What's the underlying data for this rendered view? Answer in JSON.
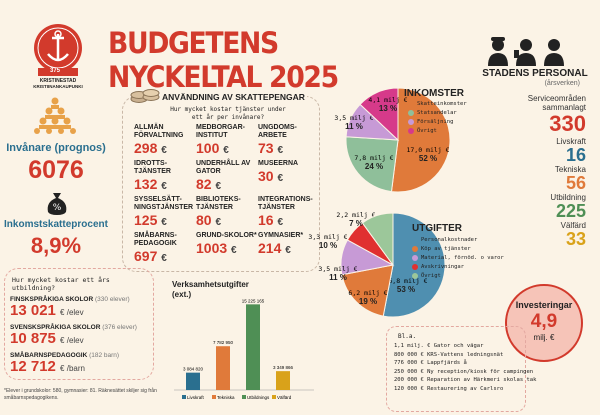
{
  "title": "BUDGETENS NYCKELTAL 2025",
  "logo": {
    "year_a": "anno",
    "year": "375",
    "year_b": "Kristinestad",
    "name1": "KRISTINESTAD",
    "name2": "KRISTIINANKAUPUNKI"
  },
  "residents": {
    "label": "Invånare (prognos)",
    "value": "6076"
  },
  "tax": {
    "label": "Inkomstskatteprocent",
    "value": "8,9%"
  },
  "services": {
    "title": "ANVÄNDNING AV SKATTEPENGAR",
    "subtitle": "Hur mycket kostar tjänster under ett år per invånare?",
    "items": [
      {
        "label": "ALLMÄN FÖRVALTNING",
        "value": "298",
        "unit": "€"
      },
      {
        "label": "MEDBORGAR-INSTITUT",
        "value": "100",
        "unit": "€"
      },
      {
        "label": "UNGDOMS-ARBETE",
        "value": "73",
        "unit": "€"
      },
      {
        "label": "IDROTTS-TJÄNSTER",
        "value": "132",
        "unit": "€"
      },
      {
        "label": "UNDERHÅLL AV GATOR",
        "value": "82",
        "unit": "€"
      },
      {
        "label": "MUSEERNA",
        "value": "30",
        "unit": "€"
      },
      {
        "label": "SYSSELSÄTT-NINGSTJÄNSTER",
        "value": "125",
        "unit": "€"
      },
      {
        "label": "BIBLIOTEKS-TJÄNSTER",
        "value": "80",
        "unit": "€"
      },
      {
        "label": "INTEGRATIONS-TJÄNSTER",
        "value": "16",
        "unit": "€"
      },
      {
        "label": "SMÅBARNS-PEDAGOGIK",
        "value": "697",
        "unit": "€"
      },
      {
        "label": "GRUND-SKOLOR*",
        "value": "1003",
        "unit": "€"
      },
      {
        "label": "GYMNASIER*",
        "value": "214",
        "unit": "€"
      }
    ]
  },
  "income": {
    "title": "INKOMSTER",
    "legend": [
      "Skatteinkomster",
      "Statsandelar",
      "Försäljning",
      "Övrigt"
    ],
    "colors": [
      "#e07a3a",
      "#8fbf9a",
      "#c79ad6",
      "#d63a8a"
    ],
    "slices": [
      {
        "amount": "17,0 milj €",
        "pct": "52 %",
        "value": 52
      },
      {
        "amount": "7,8 milj €",
        "pct": "24 %",
        "value": 24
      },
      {
        "amount": "3,5 milj €",
        "pct": "11 %",
        "value": 11
      },
      {
        "amount": "4,1 milj €",
        "pct": "13 %",
        "value": 13
      }
    ]
  },
  "expense": {
    "title": "UTGIFTER",
    "legend": [
      "Personalkostnader",
      "Köp av tjänster",
      "Material, förnöd. o varor",
      "Avskrivningar",
      "Övrigt"
    ],
    "colors": [
      "#4f8fb0",
      "#e07a3a",
      "#c79ad6",
      "#e03030",
      "#9cc79a"
    ],
    "slices": [
      {
        "amount": "16,8 milj €",
        "pct": "53 %",
        "value": 53
      },
      {
        "amount": "6,2 milj €",
        "pct": "19 %",
        "value": 19
      },
      {
        "amount": "3,5 milj €",
        "pct": "11 %",
        "value": 11
      },
      {
        "amount": "2,2 milj €",
        "pct": "7 %",
        "value": 7
      },
      {
        "amount": "3,3 milj €",
        "pct": "10 %",
        "value": 10
      }
    ]
  },
  "staff": {
    "title": "STADENS PERSONAL",
    "subtitle": "(årsverken)",
    "items": [
      {
        "label": "Serviceområden sammanlagt",
        "value": "330",
        "color": "#d23a2c"
      },
      {
        "label": "Livskraft",
        "value": "16",
        "color": "#2a6f8f"
      },
      {
        "label": "Tekniska",
        "value": "56",
        "color": "#e07a3a"
      },
      {
        "label": "Utbildning",
        "value": "225",
        "color": "#4f8f55"
      },
      {
        "label": "Välfärd",
        "value": "33",
        "color": "#d9a21a"
      }
    ]
  },
  "student_cost": {
    "q": "Hur mycket kostar ett års utbildning?",
    "items": [
      {
        "label": "FINSKSPRÅKIGA SKOLOR",
        "note": "(330 elever)",
        "value": "13 021",
        "unit": "€ /elev"
      },
      {
        "label": "SVENSKSPRÅKIGA SKOLOR",
        "note": "(376 elever)",
        "value": "10 875",
        "unit": "€ /elev"
      },
      {
        "label": "SMÅBARNSPEDAGOGIK",
        "note": "(182 barn)",
        "value": "12 712",
        "unit": "€ /barn"
      }
    ],
    "footnote": "*Elever i grundskolor: 580, gymnasier: 81. Räknesättet skiljer sig från småbarnspedagogikens."
  },
  "chart_data": {
    "type": "bar",
    "title": "Verksamhetsutgifter (ext.)",
    "categories": [
      "Livskraft",
      "Tekniska",
      "Utbildnings",
      "Välfärd"
    ],
    "values": [
      3084820,
      7782950,
      15225165,
      3349866
    ],
    "labels": [
      "3 084 820",
      "7 782 950",
      "15 225 165",
      "3 349 866"
    ],
    "colors": [
      "#2a6f8f",
      "#e07a3a",
      "#4f8f55",
      "#d9a21a"
    ]
  },
  "invest": {
    "title": "Investeringar",
    "value": "4,9",
    "unit": "milj. €",
    "intro": "Bl.a.",
    "items": [
      "1,1 milj. € Gator och vägar",
      "800 000 € KRS-Vattens ledningsnät",
      "776 000 € Lappfjärds å",
      "250 000 € Ny reception/kiosk för campingen",
      "200 000 € Reparation av Härkmeri skolas tak",
      "120 000 € Restaurering av Carlsro"
    ]
  }
}
